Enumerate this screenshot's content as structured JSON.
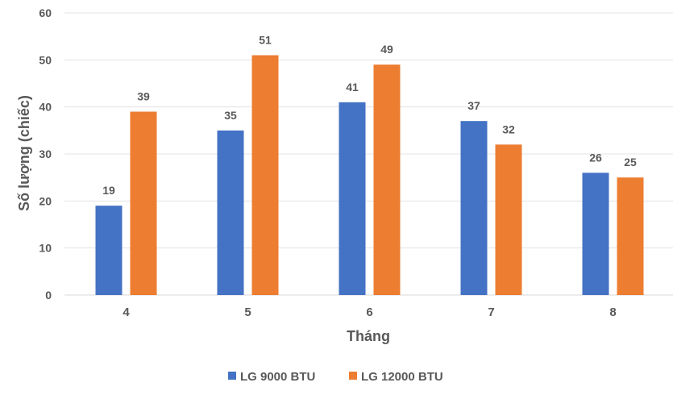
{
  "chart_data": {
    "type": "bar",
    "title": "",
    "xlabel": "Tháng",
    "ylabel": "Số lượng (chiếc)",
    "categories": [
      "4",
      "5",
      "6",
      "7",
      "8"
    ],
    "ylim": [
      0,
      60
    ],
    "yticks": [
      0,
      10,
      20,
      30,
      40,
      50,
      60
    ],
    "grid": true,
    "legend_position": "bottom",
    "series": [
      {
        "name": "LG 9000 BTU",
        "color": "#4472C4",
        "values": [
          19,
          35,
          41,
          37,
          26
        ]
      },
      {
        "name": "LG 12000 BTU",
        "color": "#ED7D31",
        "values": [
          39,
          51,
          49,
          32,
          25
        ]
      }
    ]
  }
}
